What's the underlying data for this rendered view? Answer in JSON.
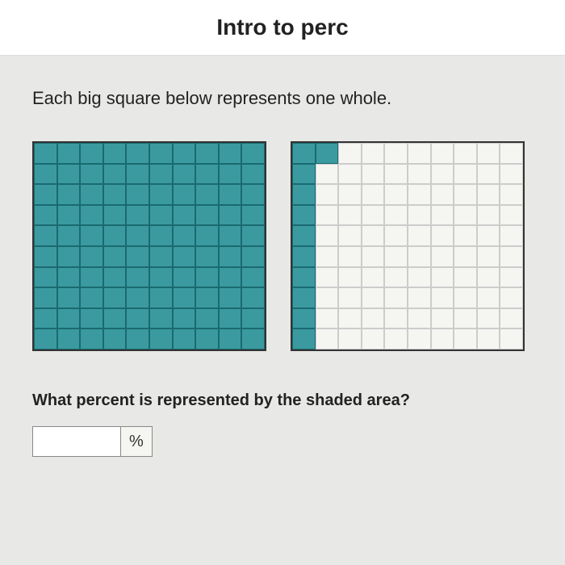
{
  "header": {
    "title": "Intro to perc"
  },
  "content": {
    "intro": "Each big square below represents one whole.",
    "question": "What percent is represented by the shaded area?",
    "unit": "%"
  },
  "grids": {
    "cols": 10,
    "rows": 10,
    "filled_color": "#3a9aa0",
    "filled_border": "#1a6a70",
    "empty_color": "#f5f5f2",
    "empty_border": "#cccccc",
    "grid_border": "#333333",
    "squares": [
      {
        "filled_cells": 100
      },
      {
        "filled_cells": 11
      }
    ]
  },
  "input": {
    "value": ""
  }
}
